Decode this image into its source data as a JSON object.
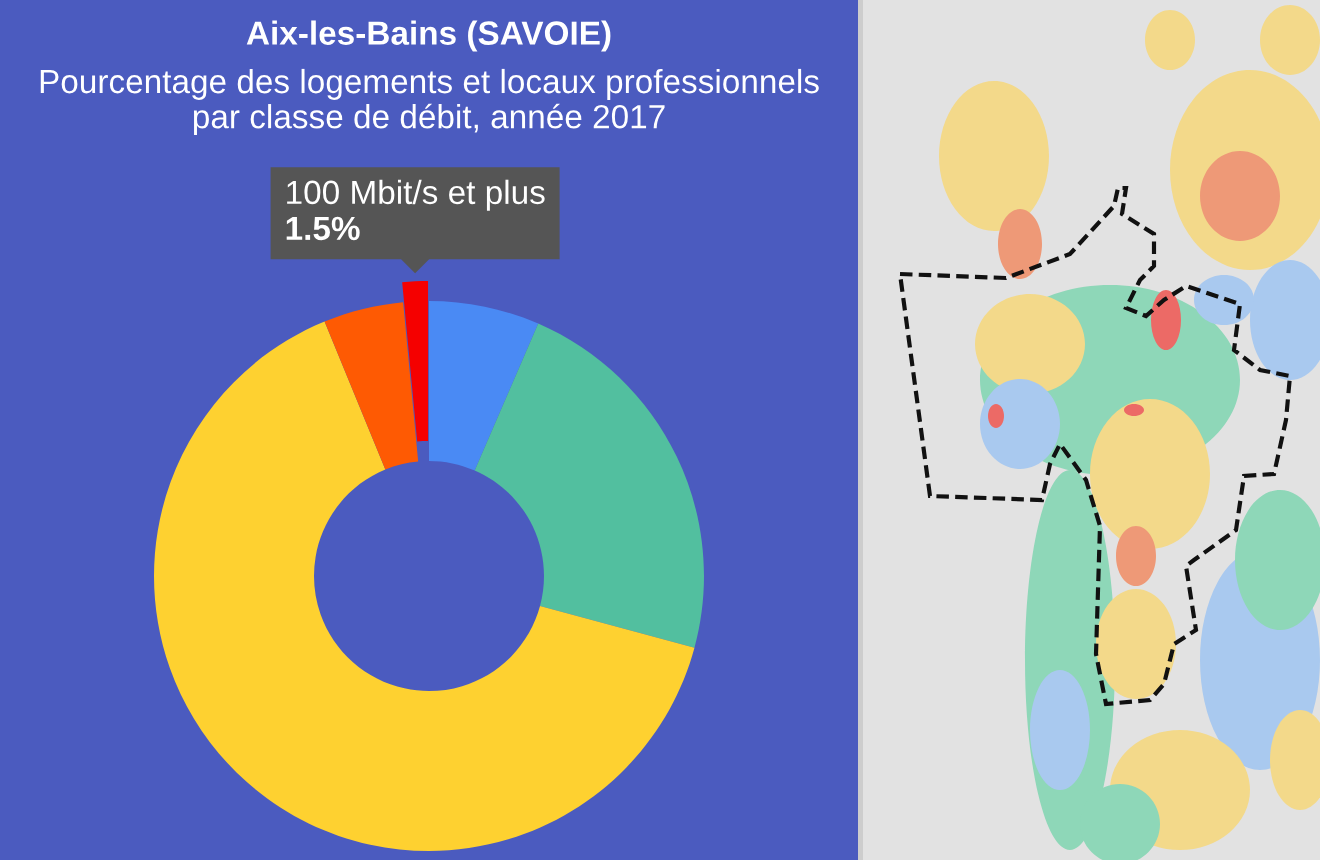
{
  "chart_data": {
    "type": "donut",
    "title": "Aix-les-Bains (SAVOIE)",
    "subtitle": "Pourcentage des logements et locaux professionnels\npar classe de débit, année 2017",
    "categories": [
      null,
      null,
      null,
      null,
      "100 Mbit/s et plus"
    ],
    "values": [
      6.5,
      22.7,
      64.6,
      4.7,
      1.5
    ],
    "colors": [
      "#4a8af4",
      "#52bf9f",
      "#fed130",
      "#fe5a03",
      "#f50000"
    ],
    "value_labels": [
      null,
      null,
      null,
      null,
      "1.5%"
    ]
  }
}
